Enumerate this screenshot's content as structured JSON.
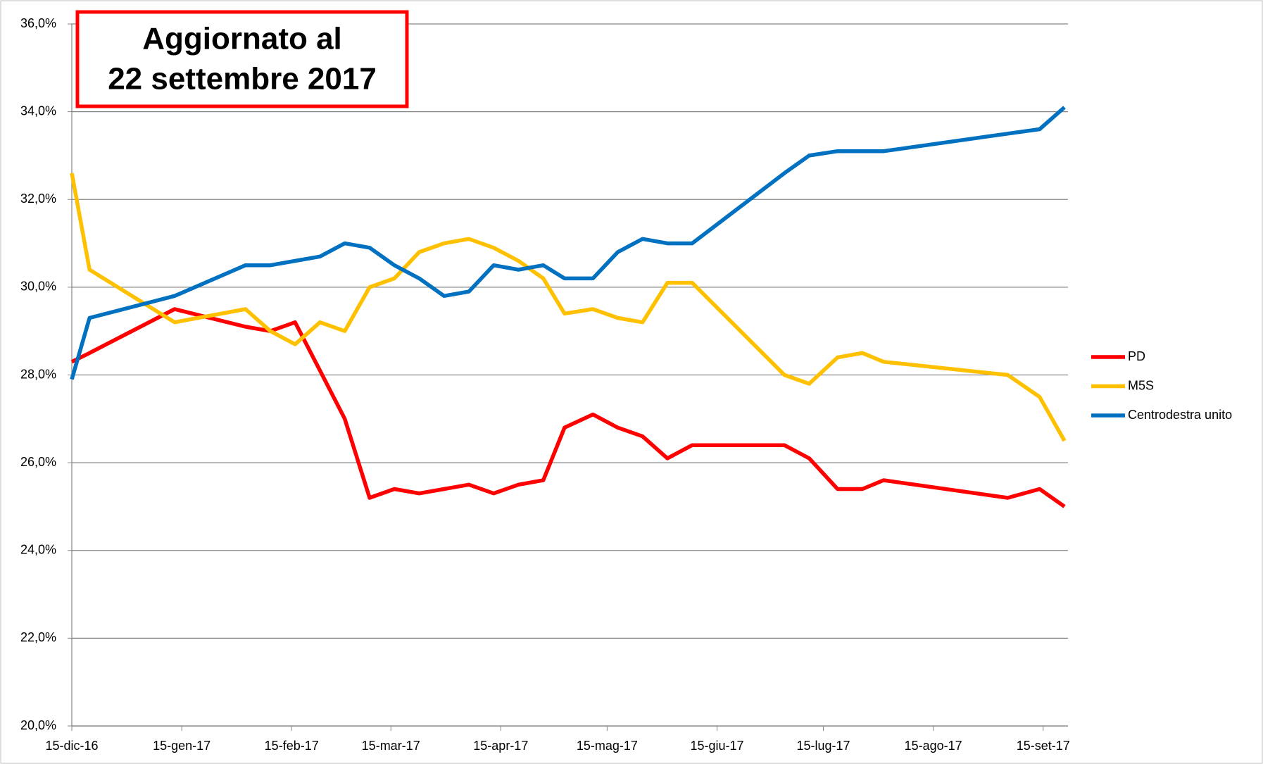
{
  "chart_data": {
    "type": "line",
    "annotation": [
      "Aggiornato al",
      "22 settembre 2017"
    ],
    "x": [
      "2016-12-15",
      "2016-12-20",
      "2017-01-13",
      "2017-02-02",
      "2017-02-09",
      "2017-02-16",
      "2017-02-23",
      "2017-03-02",
      "2017-03-09",
      "2017-03-16",
      "2017-03-23",
      "2017-03-30",
      "2017-04-06",
      "2017-04-13",
      "2017-04-20",
      "2017-04-27",
      "2017-05-03",
      "2017-05-11",
      "2017-05-18",
      "2017-05-25",
      "2017-06-01",
      "2017-06-08",
      "2017-07-04",
      "2017-07-11",
      "2017-07-19",
      "2017-07-26",
      "2017-08-01",
      "2017-09-05",
      "2017-09-14",
      "2017-09-21"
    ],
    "series": [
      {
        "name": "PD",
        "color": "#ff0000",
        "values": [
          28.3,
          28.5,
          29.5,
          29.1,
          29.0,
          29.2,
          28.1,
          27.0,
          25.2,
          25.4,
          25.3,
          25.4,
          25.5,
          25.3,
          25.5,
          25.6,
          26.8,
          27.1,
          26.8,
          26.6,
          26.1,
          26.4,
          26.4,
          26.1,
          25.4,
          25.4,
          25.6,
          25.2,
          25.4,
          25.0
        ]
      },
      {
        "name": "M5S",
        "color": "#ffc000",
        "values": [
          32.6,
          30.4,
          29.2,
          29.5,
          29.0,
          28.7,
          29.2,
          29.0,
          30.0,
          30.2,
          30.8,
          31.0,
          31.1,
          30.9,
          30.6,
          30.2,
          29.4,
          29.5,
          29.3,
          29.2,
          30.1,
          30.1,
          28.0,
          27.8,
          28.4,
          28.5,
          28.3,
          28.0,
          27.5,
          26.5
        ]
      },
      {
        "name": "Centrodestra unito",
        "color": "#0070c0",
        "values": [
          27.9,
          29.3,
          29.8,
          30.5,
          30.5,
          30.6,
          30.7,
          31.0,
          30.9,
          30.5,
          30.2,
          29.8,
          29.9,
          30.5,
          30.4,
          30.5,
          30.2,
          30.2,
          30.8,
          31.1,
          31.0,
          31.0,
          32.6,
          33.0,
          33.1,
          33.1,
          33.1,
          33.5,
          33.6,
          34.1
        ]
      }
    ],
    "xlim": [
      "2016-12-15",
      "2017-09-22"
    ],
    "xticks": [
      {
        "value": "2016-12-15",
        "label": "15-dic-16"
      },
      {
        "value": "2017-01-15",
        "label": "15-gen-17"
      },
      {
        "value": "2017-02-15",
        "label": "15-feb-17"
      },
      {
        "value": "2017-03-15",
        "label": "15-mar-17"
      },
      {
        "value": "2017-04-15",
        "label": "15-apr-17"
      },
      {
        "value": "2017-05-15",
        "label": "15-mag-17"
      },
      {
        "value": "2017-06-15",
        "label": "15-giu-17"
      },
      {
        "value": "2017-07-15",
        "label": "15-lug-17"
      },
      {
        "value": "2017-08-15",
        "label": "15-ago-17"
      },
      {
        "value": "2017-09-15",
        "label": "15-set-17"
      }
    ],
    "ylim": [
      20,
      36
    ],
    "yticks": [
      {
        "value": 20,
        "label": "20,0%"
      },
      {
        "value": 22,
        "label": "22,0%"
      },
      {
        "value": 24,
        "label": "24,0%"
      },
      {
        "value": 26,
        "label": "26,0%"
      },
      {
        "value": 28,
        "label": "28,0%"
      },
      {
        "value": 30,
        "label": "30,0%"
      },
      {
        "value": 32,
        "label": "32,0%"
      },
      {
        "value": 34,
        "label": "34,0%"
      },
      {
        "value": 36,
        "label": "36,0%"
      }
    ],
    "grid": true,
    "legend": "right"
  }
}
